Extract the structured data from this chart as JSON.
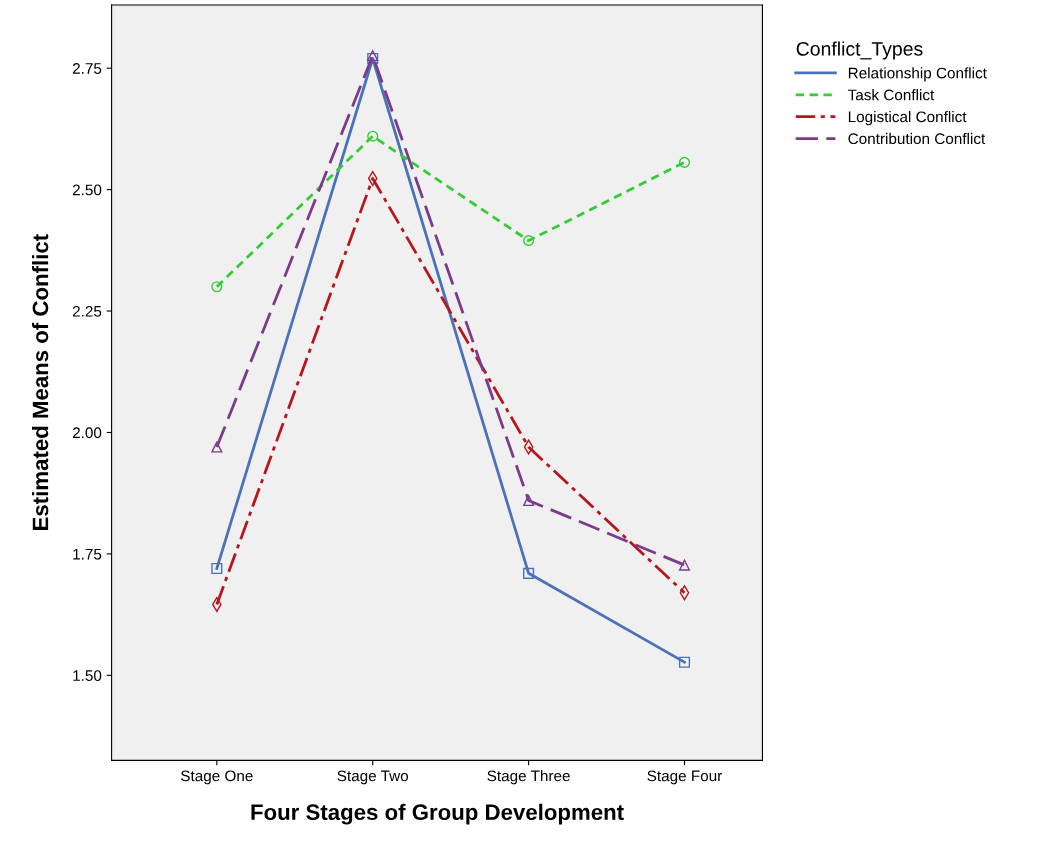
{
  "chart_data": {
    "type": "line",
    "xlabel": "Four Stages of Group Development",
    "ylabel": "Estimated Means of Conflict",
    "legend_title": "Conflict_Types",
    "categories": [
      "Stage One",
      "Stage Two",
      "Stage Three",
      "Stage Four"
    ],
    "series": [
      {
        "name": "Relationship Conflict",
        "color": "#4a72b8",
        "values": [
          1.72,
          2.77,
          1.71,
          1.527
        ],
        "marker": "square",
        "line_style": "solid"
      },
      {
        "name": "Task Conflict",
        "color": "#33cc33",
        "values": [
          2.3,
          2.61,
          2.395,
          2.556
        ],
        "marker": "circle",
        "line_style": "dashed"
      },
      {
        "name": "Logistical Conflict",
        "color": "#b8141d",
        "values": [
          1.646,
          2.523,
          1.97,
          1.67
        ],
        "marker": "diamond",
        "line_style": "dashdot"
      },
      {
        "name": "Contribution Conflict",
        "color": "#7b3a8a",
        "values": [
          1.97,
          2.776,
          1.86,
          1.727
        ],
        "marker": "triangle",
        "line_style": "longdash"
      }
    ],
    "ylim": [
      1.325,
      2.88
    ],
    "yticks": [
      {
        "value": 1.5,
        "label": "1.50"
      },
      {
        "value": 1.75,
        "label": "1.75"
      },
      {
        "value": 2.0,
        "label": "2.00"
      },
      {
        "value": 2.25,
        "label": "2.25"
      },
      {
        "value": 2.5,
        "label": "2.50"
      },
      {
        "value": 2.75,
        "label": "2.75"
      }
    ],
    "grid": false,
    "legend": "right"
  }
}
